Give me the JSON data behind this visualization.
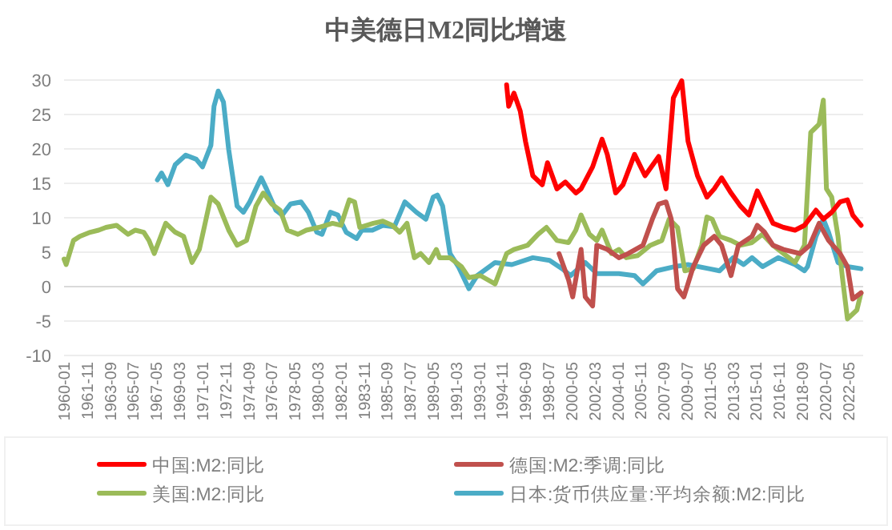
{
  "chart_data": {
    "type": "line",
    "title": "中美德日M2同比增速",
    "xlim": [
      "1960-01",
      "2023-07"
    ],
    "xticks": [
      "1960-01",
      "1961-11",
      "1963-09",
      "1965-07",
      "1967-05",
      "1969-03",
      "1971-01",
      "1972-11",
      "1974-09",
      "1976-07",
      "1978-05",
      "1980-03",
      "1982-01",
      "1983-11",
      "1985-09",
      "1987-07",
      "1989-05",
      "1991-03",
      "1993-01",
      "1994-11",
      "1996-09",
      "1998-07",
      "2000-05",
      "2002-03",
      "2004-01",
      "2005-11",
      "2007-09",
      "2009-07",
      "2011-05",
      "2013-03",
      "2015-01",
      "2016-11",
      "2018-09",
      "2020-07",
      "2022-05"
    ],
    "ylim": [
      -10,
      30
    ],
    "yticks": [
      -10,
      -5,
      0,
      5,
      10,
      15,
      20,
      25,
      30
    ],
    "grid": "y",
    "legend": "bottom",
    "marker": "none",
    "line_style": "solid",
    "series": [
      {
        "name": "中国:M2:同比",
        "color": "#ff0000",
        "x": [
          "1995-03",
          "1995-05",
          "1995-10",
          "1996-04",
          "1996-09",
          "1997-04",
          "1998-01",
          "1998-06",
          "1999-03",
          "1999-11",
          "2000-09",
          "2001-02",
          "2002-01",
          "2002-10",
          "2003-03",
          "2003-11",
          "2004-06",
          "2005-05",
          "2006-03",
          "2007-04",
          "2007-11",
          "2008-06",
          "2009-02",
          "2009-08",
          "2010-05",
          "2011-02",
          "2011-09",
          "2012-04",
          "2013-01",
          "2013-10",
          "2014-06",
          "2015-02",
          "2015-09",
          "2016-05",
          "2017-03",
          "2018-02",
          "2018-11",
          "2019-10",
          "2020-05",
          "2021-01",
          "2021-09",
          "2022-04",
          "2022-09",
          "2023-05"
        ],
        "values": [
          29.3,
          26.2,
          28.1,
          25.5,
          21.1,
          16.1,
          14.8,
          18.0,
          14.2,
          15.2,
          13.6,
          14.2,
          17.4,
          21.4,
          19.2,
          13.6,
          14.8,
          19.2,
          16.1,
          18.9,
          14.2,
          27.4,
          29.9,
          21.1,
          16.1,
          13.0,
          14.2,
          15.8,
          13.6,
          11.7,
          10.4,
          13.9,
          11.7,
          9.2,
          8.6,
          8.2,
          8.9,
          11.1,
          9.8,
          10.8,
          12.3,
          12.6,
          10.4,
          8.9
        ]
      },
      {
        "name": "德国:M2:季调:同比",
        "color": "#c0504d",
        "x": [
          "1999-05",
          "2000-02",
          "2000-06",
          "2001-02",
          "2001-06",
          "2002-01",
          "2002-05",
          "2003-03",
          "2004-02",
          "2004-11",
          "2006-01",
          "2006-10",
          "2007-04",
          "2007-11",
          "2008-04",
          "2008-10",
          "2009-04",
          "2010-01",
          "2010-11",
          "2011-09",
          "2012-04",
          "2013-01",
          "2013-08",
          "2014-09",
          "2015-02",
          "2015-09",
          "2016-05",
          "2017-03",
          "2018-07",
          "2019-04",
          "2020-01",
          "2020-10",
          "2021-09",
          "2022-04",
          "2022-09",
          "2023-05"
        ],
        "values": [
          4.8,
          1.0,
          -1.5,
          5.4,
          -1.5,
          -2.8,
          6.0,
          5.4,
          4.2,
          4.8,
          6.0,
          9.8,
          12.0,
          12.3,
          9.8,
          -0.3,
          -1.5,
          2.9,
          6.0,
          7.3,
          6.0,
          1.6,
          6.0,
          7.3,
          8.9,
          7.9,
          6.0,
          5.4,
          4.8,
          6.0,
          9.2,
          6.7,
          4.8,
          2.9,
          -1.8,
          -0.9
        ]
      },
      {
        "name": "美国:M2:同比",
        "color": "#9bbb59",
        "x": [
          "1960-01",
          "1960-03",
          "1960-10",
          "1961-04",
          "1962-02",
          "1962-10",
          "1963-05",
          "1964-03",
          "1965-02",
          "1965-09",
          "1966-05",
          "1966-10",
          "1967-03",
          "1968-02",
          "1968-11",
          "1969-07",
          "1970-03",
          "1970-10",
          "1971-09",
          "1972-04",
          "1973-02",
          "1973-10",
          "1974-07",
          "1975-04",
          "1975-11",
          "1976-07",
          "1977-03",
          "1977-10",
          "1978-08",
          "1979-04",
          "1980-04",
          "1981-05",
          "1982-01",
          "1982-09",
          "1983-02",
          "1983-07",
          "1984-08",
          "1985-05",
          "1986-02",
          "1986-09",
          "1987-04",
          "1987-11",
          "1988-05",
          "1989-01",
          "1989-08",
          "1989-11",
          "1990-09",
          "1991-08",
          "1992-03",
          "1993-02",
          "1994-04",
          "1995-03",
          "1995-10",
          "1996-11",
          "1997-09",
          "1998-05",
          "1999-03",
          "2000-02",
          "2000-09",
          "2001-02",
          "2001-10",
          "2002-05",
          "2002-10",
          "2003-07",
          "2004-02",
          "2004-09",
          "2005-08",
          "2006-08",
          "2007-07",
          "2008-02",
          "2008-10",
          "2009-05",
          "2010-01",
          "2010-09",
          "2011-02",
          "2011-07",
          "2012-02",
          "2013-01",
          "2013-10",
          "2014-09",
          "2015-07",
          "2016-05",
          "2017-03",
          "2018-02",
          "2018-11",
          "2019-05",
          "2020-01",
          "2020-05",
          "2020-08",
          "2021-01",
          "2021-07",
          "2021-11",
          "2022-04",
          "2023-01",
          "2023-05"
        ],
        "values": [
          4.0,
          3.2,
          6.7,
          7.3,
          7.9,
          8.2,
          8.6,
          8.9,
          7.6,
          8.2,
          7.9,
          6.7,
          4.8,
          9.2,
          7.9,
          7.3,
          3.5,
          5.4,
          13.0,
          12.0,
          8.2,
          6.0,
          6.7,
          11.7,
          13.6,
          12.0,
          11.1,
          8.2,
          7.6,
          8.2,
          8.6,
          9.2,
          8.9,
          12.6,
          12.3,
          8.6,
          9.2,
          9.5,
          8.9,
          7.9,
          9.2,
          4.2,
          4.8,
          3.5,
          5.4,
          4.2,
          4.2,
          2.9,
          1.3,
          1.6,
          0.4,
          4.8,
          5.4,
          6.0,
          7.6,
          8.6,
          6.7,
          6.4,
          8.2,
          10.4,
          7.6,
          6.7,
          8.2,
          4.8,
          5.4,
          4.2,
          4.5,
          6.0,
          6.7,
          9.8,
          8.6,
          2.3,
          2.6,
          6.0,
          10.1,
          9.8,
          7.3,
          6.7,
          6.0,
          6.4,
          7.6,
          6.0,
          4.8,
          3.5,
          6.0,
          22.4,
          23.6,
          27.1,
          14.2,
          13.0,
          7.3,
          1.6,
          -4.7,
          -3.4,
          -0.9
        ]
      },
      {
        "name": "日本:货币供应量:平均余额:M2:同比",
        "color": "#4bacc6",
        "x": [
          "1967-06",
          "1967-10",
          "1968-04",
          "1968-11",
          "1969-09",
          "1970-07",
          "1971-01",
          "1971-09",
          "1971-12",
          "1972-04",
          "1972-09",
          "1973-02",
          "1973-10",
          "1974-04",
          "1974-10",
          "1975-09",
          "1976-02",
          "1976-11",
          "1977-05",
          "1978-01",
          "1978-11",
          "1979-06",
          "1980-02",
          "1980-07",
          "1981-03",
          "1981-10",
          "1982-06",
          "1983-04",
          "1983-09",
          "1984-07",
          "1985-05",
          "1986-04",
          "1987-02",
          "1988-01",
          "1988-10",
          "1989-05",
          "1989-09",
          "1990-02",
          "1990-09",
          "1991-05",
          "1992-03",
          "1992-11",
          "1994-04",
          "1995-08",
          "1997-04",
          "1998-08",
          "1999-08",
          "2000-04",
          "2001-06",
          "2002-05",
          "2004-02",
          "2005-05",
          "2006-01",
          "2007-02",
          "2008-07",
          "2009-08",
          "2011-04",
          "2012-02",
          "2013-03",
          "2014-01",
          "2014-09",
          "2015-07",
          "2016-10",
          "2018-02",
          "2018-11",
          "2019-02",
          "2019-10",
          "2020-05",
          "2020-10",
          "2021-07",
          "2022-04",
          "2023-05"
        ],
        "values": [
          15.5,
          16.5,
          14.8,
          17.7,
          19.1,
          18.5,
          17.4,
          20.5,
          26.2,
          28.4,
          26.8,
          19.9,
          11.7,
          10.8,
          12.3,
          15.8,
          14.2,
          11.1,
          10.4,
          12.0,
          12.3,
          10.8,
          7.9,
          7.6,
          10.8,
          10.4,
          7.9,
          7.0,
          8.2,
          8.2,
          8.9,
          8.7,
          12.3,
          10.8,
          9.8,
          13.0,
          13.3,
          11.7,
          4.8,
          2.9,
          -0.3,
          1.6,
          3.5,
          3.2,
          4.2,
          3.8,
          2.6,
          1.6,
          3.5,
          1.9,
          1.9,
          1.6,
          0.4,
          2.3,
          2.9,
          3.2,
          2.6,
          2.3,
          4.2,
          3.2,
          4.2,
          2.9,
          4.2,
          3.2,
          2.3,
          2.9,
          7.3,
          9.8,
          7.9,
          3.5,
          2.9,
          2.6
        ]
      }
    ]
  }
}
